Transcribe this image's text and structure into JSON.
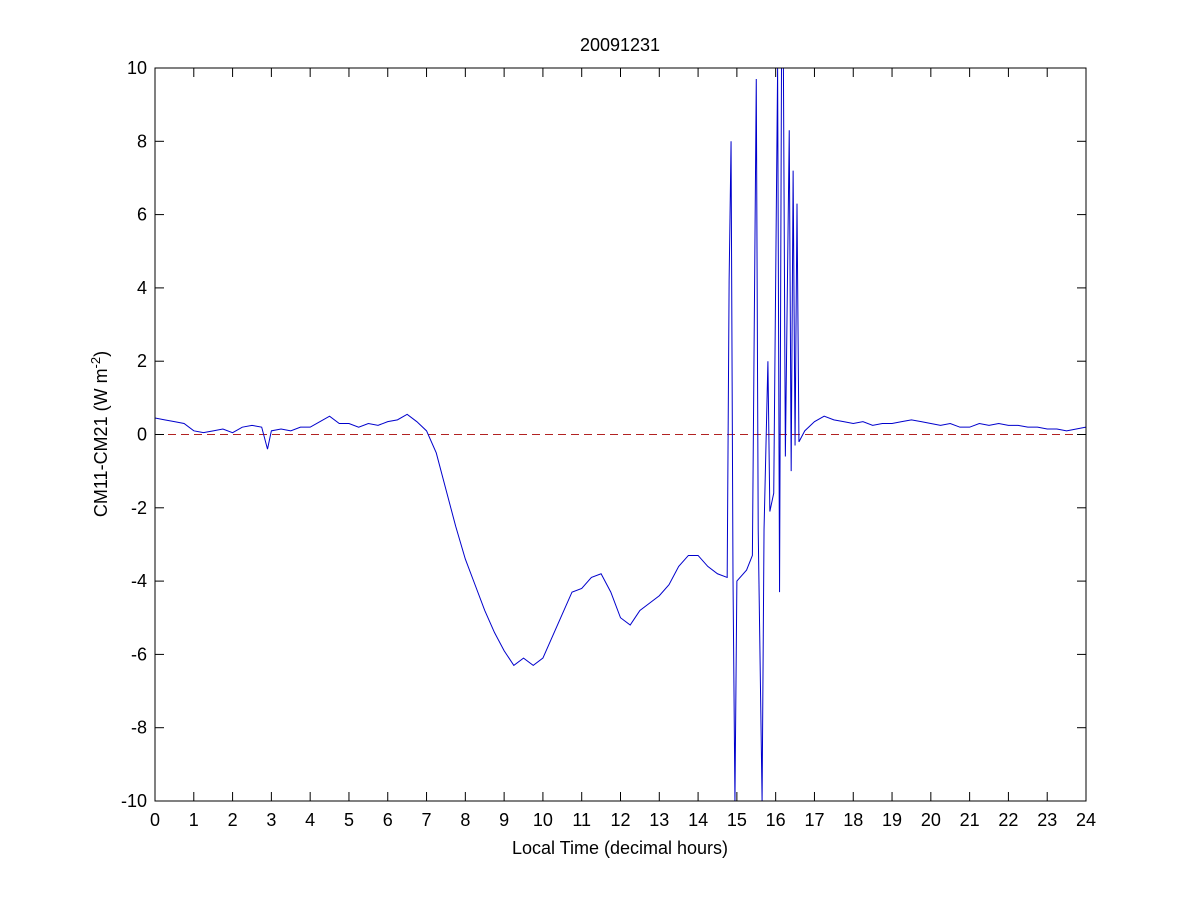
{
  "chart_data": {
    "type": "line",
    "title": "20091231",
    "x_label": "Local Time (decimal hours)",
    "y_label": [
      "CM11-CM21 (W m",
      "-2",
      ")"
    ],
    "x": [
      0,
      0.25,
      0.5,
      0.75,
      1,
      1.25,
      1.5,
      1.75,
      2,
      2.25,
      2.5,
      2.75,
      2.9,
      3,
      3.25,
      3.5,
      3.75,
      4,
      4.25,
      4.5,
      4.75,
      5,
      5.25,
      5.5,
      5.75,
      6,
      6.25,
      6.5,
      6.75,
      7,
      7.25,
      7.5,
      7.75,
      8,
      8.25,
      8.5,
      8.75,
      9,
      9.25,
      9.5,
      9.75,
      10,
      10.25,
      10.5,
      10.75,
      11,
      11.25,
      11.5,
      11.75,
      12,
      12.25,
      12.5,
      12.75,
      13,
      13.25,
      13.5,
      13.75,
      14,
      14.25,
      14.5,
      14.75,
      14.8,
      14.85,
      14.9,
      14.95,
      15,
      15.25,
      15.4,
      15.5,
      15.55,
      15.65,
      15.7,
      15.8,
      15.85,
      15.95,
      16.05,
      16.1,
      16.15,
      16.2,
      16.25,
      16.35,
      16.4,
      16.45,
      16.5,
      16.55,
      16.6,
      16.75,
      17,
      17.25,
      17.5,
      17.75,
      18,
      18.25,
      18.5,
      18.75,
      19,
      19.25,
      19.5,
      19.75,
      20,
      20.25,
      20.5,
      20.75,
      21,
      21.25,
      21.5,
      21.75,
      22,
      22.25,
      22.5,
      22.75,
      23,
      23.25,
      23.5,
      23.75,
      24
    ],
    "series": [
      {
        "name": "CM11-CM21",
        "color": "#0000cc",
        "values": [
          0.45,
          0.4,
          0.35,
          0.3,
          0.1,
          0.05,
          0.1,
          0.15,
          0.05,
          0.2,
          0.25,
          0.2,
          -0.4,
          0.1,
          0.15,
          0.1,
          0.2,
          0.2,
          0.35,
          0.5,
          0.3,
          0.3,
          0.2,
          0.3,
          0.25,
          0.35,
          0.4,
          0.55,
          0.35,
          0.1,
          -0.5,
          -1.5,
          -2.5,
          -3.4,
          -4.1,
          -4.8,
          -5.4,
          -5.9,
          -6.3,
          -6.1,
          -6.3,
          -6.1,
          -5.5,
          -4.9,
          -4.3,
          -4.2,
          -3.9,
          -3.8,
          -4.3,
          -5.0,
          -5.2,
          -4.8,
          -4.6,
          -4.4,
          -4.1,
          -3.6,
          -3.3,
          -3.3,
          -3.6,
          -3.8,
          -3.9,
          4.2,
          8,
          -3.9,
          -10,
          -4,
          -3.7,
          -3.3,
          9.7,
          -2.6,
          -10,
          -2.6,
          2,
          -2.1,
          -1.6,
          10,
          -4.3,
          10,
          10,
          -0.6,
          8.3,
          -1,
          7.2,
          -0.3,
          6.3,
          -0.2,
          0.1,
          0.35,
          0.5,
          0.4,
          0.35,
          0.3,
          0.35,
          0.25,
          0.3,
          0.3,
          0.35,
          0.4,
          0.35,
          0.3,
          0.25,
          0.3,
          0.2,
          0.2,
          0.3,
          0.25,
          0.3,
          0.25,
          0.25,
          0.2,
          0.2,
          0.15,
          0.15,
          0.1,
          0.15,
          0.2
        ]
      }
    ],
    "reference_line": {
      "value": 0,
      "color": "#b22222"
    },
    "xlim": [
      0,
      24
    ],
    "xticks": [
      0,
      1,
      2,
      3,
      4,
      5,
      6,
      7,
      8,
      9,
      10,
      11,
      12,
      13,
      14,
      15,
      16,
      17,
      18,
      19,
      20,
      21,
      22,
      23,
      24
    ],
    "ylim": [
      -10,
      10
    ],
    "yticks": [
      -10,
      -8,
      -6,
      -4,
      -2,
      0,
      2,
      4,
      6,
      8,
      10
    ],
    "grid": false
  }
}
